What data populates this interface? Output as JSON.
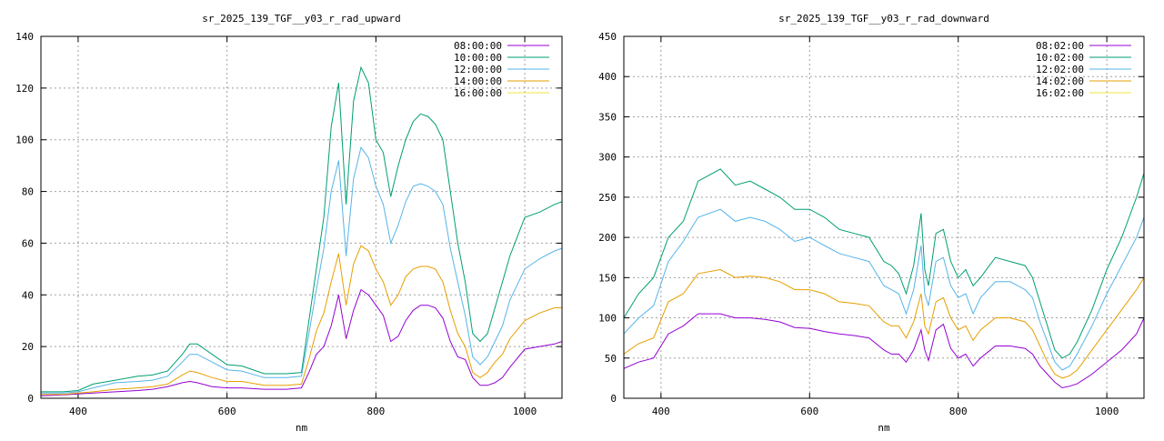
{
  "chart_data": [
    {
      "type": "line",
      "title": "sr_2025_139_TGF__y03_r_rad_upward",
      "xlabel": "nm",
      "ylabel": "",
      "xlim": [
        350,
        1050
      ],
      "ylim": [
        0,
        140
      ],
      "xticks": [
        400,
        600,
        800,
        1000
      ],
      "yticks": [
        0,
        20,
        40,
        60,
        80,
        100,
        120,
        140
      ],
      "grid": true,
      "legend": "top-right",
      "series": [
        {
          "name": "08:00:00",
          "color": "#9400d3",
          "x": [
            350,
            380,
            400,
            420,
            450,
            480,
            500,
            520,
            540,
            550,
            560,
            580,
            600,
            620,
            650,
            680,
            700,
            710,
            720,
            730,
            740,
            750,
            760,
            770,
            780,
            790,
            800,
            810,
            820,
            830,
            840,
            850,
            860,
            870,
            880,
            890,
            900,
            910,
            920,
            930,
            940,
            950,
            960,
            970,
            980,
            1000,
            1020,
            1040,
            1050
          ],
          "y": [
            1,
            1.3,
            1.7,
            2,
            2.5,
            3,
            3.5,
            4.5,
            6,
            6.5,
            6,
            4.5,
            4,
            4,
            3.5,
            3.5,
            4,
            10,
            17,
            20,
            28,
            40,
            23,
            34,
            42,
            40,
            36,
            32,
            22,
            24,
            30,
            34,
            36,
            36,
            35,
            31,
            22,
            16,
            15,
            8,
            5,
            5,
            6,
            8,
            12,
            19,
            20,
            21,
            22
          ]
        },
        {
          "name": "10:00:00",
          "color": "#009e73",
          "x": [
            350,
            380,
            400,
            420,
            450,
            480,
            500,
            520,
            540,
            550,
            560,
            580,
            600,
            620,
            650,
            680,
            700,
            710,
            720,
            730,
            740,
            750,
            760,
            770,
            780,
            790,
            800,
            810,
            820,
            830,
            840,
            850,
            860,
            870,
            880,
            890,
            900,
            910,
            920,
            930,
            940,
            950,
            960,
            970,
            980,
            1000,
            1020,
            1040,
            1050
          ],
          "y": [
            2.5,
            2.5,
            3,
            5.5,
            7,
            8.5,
            9,
            10.5,
            17,
            21,
            21,
            17,
            13,
            12.5,
            9.5,
            9.5,
            10,
            30,
            50,
            70,
            105,
            122,
            75,
            115,
            128,
            122,
            100,
            95,
            78,
            90,
            100,
            107,
            110,
            109,
            106,
            100,
            80,
            60,
            45,
            25,
            22,
            25,
            35,
            45,
            55,
            70,
            72,
            75,
            76
          ]
        },
        {
          "name": "12:00:00",
          "color": "#56b4e9",
          "x": [
            350,
            380,
            400,
            420,
            450,
            480,
            500,
            520,
            540,
            550,
            560,
            580,
            600,
            620,
            650,
            680,
            700,
            710,
            720,
            730,
            740,
            750,
            760,
            770,
            780,
            790,
            800,
            810,
            820,
            830,
            840,
            850,
            860,
            870,
            880,
            890,
            900,
            910,
            920,
            930,
            940,
            950,
            960,
            970,
            980,
            1000,
            1020,
            1040,
            1050
          ],
          "y": [
            2,
            2,
            2.5,
            4,
            6,
            6.5,
            7,
            8.5,
            14,
            17,
            17,
            14,
            11,
            10.5,
            8,
            8,
            8.5,
            25,
            42,
            58,
            80,
            92,
            55,
            85,
            97,
            93,
            82,
            75,
            60,
            67,
            76,
            82,
            83,
            82,
            80,
            75,
            58,
            45,
            32,
            16,
            13,
            16,
            22,
            28,
            38,
            50,
            54,
            57,
            58
          ]
        },
        {
          "name": "14:00:00",
          "color": "#e69f00",
          "x": [
            350,
            380,
            400,
            420,
            450,
            480,
            500,
            520,
            540,
            550,
            560,
            580,
            600,
            620,
            650,
            680,
            700,
            710,
            720,
            730,
            740,
            750,
            760,
            770,
            780,
            790,
            800,
            810,
            820,
            830,
            840,
            850,
            860,
            870,
            880,
            890,
            900,
            910,
            920,
            930,
            940,
            950,
            960,
            970,
            980,
            1000,
            1020,
            1040,
            1050
          ],
          "y": [
            1.5,
            1.5,
            2,
            2.5,
            3.5,
            4,
            4.5,
            5.5,
            9,
            10.5,
            10,
            8,
            6.5,
            6.5,
            5,
            5,
            5.5,
            15,
            26,
            33,
            45,
            56,
            36,
            52,
            59,
            57,
            50,
            45,
            36,
            40,
            47,
            50,
            51,
            51,
            50,
            45,
            34,
            25,
            20,
            10,
            8,
            10,
            14,
            17,
            23,
            30,
            33,
            35,
            35
          ]
        },
        {
          "name": "16:00:00",
          "color": "#f0e442",
          "x": [
            350,
            1050
          ],
          "y": [
            0,
            0
          ]
        }
      ]
    },
    {
      "type": "line",
      "title": "sr_2025_139_TGF__y03_r_rad_downward",
      "xlabel": "nm",
      "ylabel": "",
      "xlim": [
        350,
        1050
      ],
      "ylim": [
        0,
        450
      ],
      "xticks": [
        400,
        600,
        800,
        1000
      ],
      "yticks": [
        0,
        50,
        100,
        150,
        200,
        250,
        300,
        350,
        400,
        450
      ],
      "grid": true,
      "legend": "top-right",
      "series": [
        {
          "name": "08:02:00",
          "color": "#9400d3",
          "x": [
            350,
            370,
            390,
            410,
            430,
            450,
            480,
            500,
            520,
            540,
            560,
            580,
            600,
            620,
            640,
            660,
            680,
            700,
            710,
            720,
            730,
            740,
            750,
            755,
            760,
            770,
            780,
            790,
            800,
            810,
            820,
            830,
            850,
            870,
            890,
            900,
            910,
            920,
            930,
            940,
            950,
            960,
            980,
            1000,
            1020,
            1040,
            1050
          ],
          "y": [
            37,
            45,
            50,
            80,
            90,
            105,
            105,
            100,
            100,
            98,
            95,
            88,
            87,
            83,
            80,
            78,
            75,
            60,
            55,
            55,
            45,
            60,
            85,
            60,
            47,
            85,
            92,
            62,
            50,
            55,
            40,
            50,
            65,
            65,
            62,
            55,
            40,
            30,
            20,
            13,
            15,
            18,
            30,
            45,
            60,
            80,
            100
          ]
        },
        {
          "name": "10:02:00",
          "color": "#009e73",
          "x": [
            350,
            370,
            390,
            410,
            430,
            450,
            480,
            500,
            520,
            540,
            560,
            580,
            600,
            620,
            640,
            660,
            680,
            700,
            710,
            720,
            730,
            740,
            750,
            755,
            760,
            770,
            780,
            790,
            800,
            810,
            820,
            830,
            850,
            870,
            890,
            900,
            910,
            920,
            930,
            940,
            950,
            960,
            980,
            1000,
            1020,
            1040,
            1050
          ],
          "y": [
            100,
            130,
            150,
            200,
            220,
            270,
            285,
            265,
            270,
            260,
            250,
            235,
            235,
            225,
            210,
            205,
            200,
            170,
            165,
            155,
            130,
            165,
            230,
            160,
            140,
            205,
            210,
            170,
            150,
            160,
            140,
            150,
            175,
            170,
            165,
            150,
            120,
            90,
            60,
            50,
            55,
            70,
            110,
            160,
            200,
            250,
            280
          ]
        },
        {
          "name": "12:02:00",
          "color": "#56b4e9",
          "x": [
            350,
            370,
            390,
            410,
            430,
            450,
            480,
            500,
            520,
            540,
            560,
            580,
            600,
            620,
            640,
            660,
            680,
            700,
            710,
            720,
            730,
            740,
            750,
            755,
            760,
            770,
            780,
            790,
            800,
            810,
            820,
            830,
            850,
            870,
            890,
            900,
            910,
            920,
            930,
            940,
            950,
            960,
            980,
            1000,
            1020,
            1040,
            1050
          ],
          "y": [
            80,
            100,
            115,
            170,
            195,
            225,
            235,
            220,
            225,
            220,
            210,
            195,
            200,
            190,
            180,
            175,
            170,
            140,
            135,
            130,
            105,
            135,
            190,
            130,
            115,
            170,
            175,
            140,
            125,
            130,
            105,
            125,
            145,
            145,
            135,
            125,
            95,
            70,
            45,
            35,
            40,
            55,
            90,
            130,
            165,
            200,
            225
          ]
        },
        {
          "name": "14:02:00",
          "color": "#e69f00",
          "x": [
            350,
            370,
            390,
            410,
            430,
            450,
            480,
            500,
            520,
            540,
            560,
            580,
            600,
            620,
            640,
            660,
            680,
            700,
            710,
            720,
            730,
            740,
            750,
            755,
            760,
            770,
            780,
            790,
            800,
            810,
            820,
            830,
            850,
            870,
            890,
            900,
            910,
            920,
            930,
            940,
            950,
            960,
            980,
            1000,
            1020,
            1040,
            1050
          ],
          "y": [
            55,
            68,
            75,
            120,
            130,
            155,
            160,
            150,
            152,
            150,
            145,
            135,
            135,
            130,
            120,
            118,
            115,
            95,
            90,
            90,
            75,
            95,
            130,
            90,
            80,
            120,
            125,
            100,
            85,
            90,
            72,
            85,
            100,
            100,
            95,
            85,
            65,
            45,
            30,
            25,
            28,
            35,
            60,
            85,
            110,
            135,
            150
          ]
        },
        {
          "name": "16:02:00",
          "color": "#f0e442",
          "x": [
            350,
            1050
          ],
          "y": [
            0,
            0
          ]
        }
      ]
    }
  ]
}
